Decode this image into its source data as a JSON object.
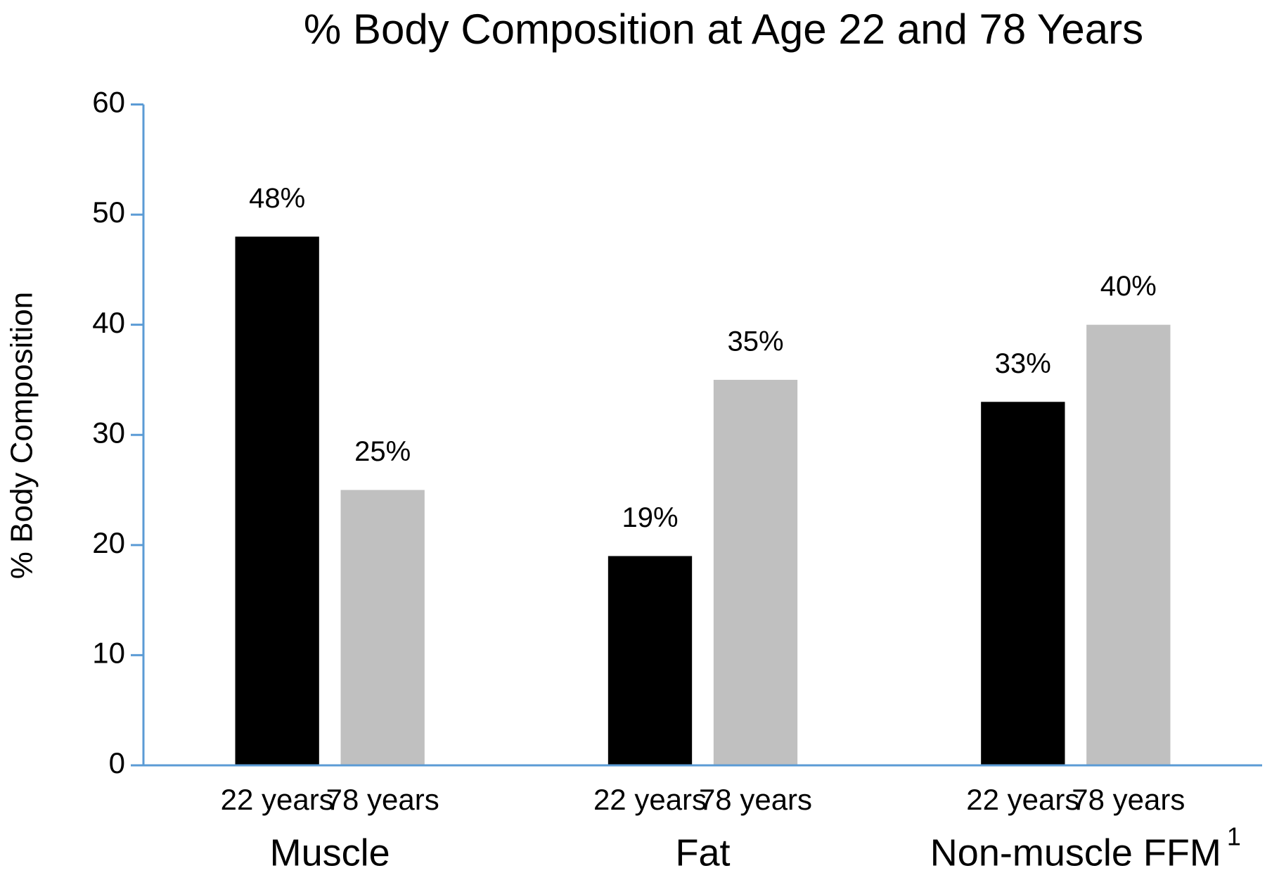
{
  "chart_data": {
    "type": "bar",
    "title": "% Body Composition at Age 22 and 78 Years",
    "y_label": "% Body Composition",
    "categories": [
      "Muscle",
      "Fat",
      "Non-muscle FFM"
    ],
    "footnote_marker": "1",
    "series": [
      {
        "name": "22 years",
        "color": "#000000",
        "values": [
          48,
          19,
          33
        ],
        "value_labels": [
          "48%",
          "19%",
          "33%"
        ]
      },
      {
        "name": "78 years",
        "color": "#c0c0c0",
        "values": [
          25,
          35,
          40
        ],
        "value_labels": [
          "25%",
          "35%",
          "40%"
        ]
      }
    ],
    "ylim": [
      0,
      60
    ],
    "yticks": [
      0,
      10,
      20,
      30,
      40,
      50,
      60
    ],
    "axis_color": "#5b9bd5"
  }
}
